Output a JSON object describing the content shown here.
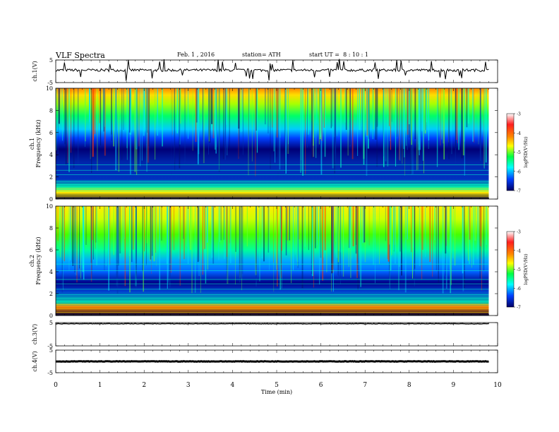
{
  "header": {
    "title": "VLF Spectra",
    "date": "Feb. 1 , 2016",
    "station": "station= ATH",
    "start": "start UT =  8 : 10 : 1"
  },
  "colors": {
    "spec_low": "#000066",
    "spec_mid": "#00cc88",
    "spec_high": "#ff2200",
    "trace": "#000000"
  },
  "colorbar": {
    "label": "logPSD(V²/Hz)",
    "ticks": [
      "-3",
      "-4",
      "-5",
      "-6",
      "-7"
    ],
    "stops": [
      "#ffffff",
      "#ff1f1f",
      "#ff8800",
      "#ffff00",
      "#00ff44",
      "#00ffff",
      "#0040ff",
      "#000066"
    ]
  },
  "chart_data": [
    {
      "type": "line",
      "name_label": "ch.1(V)",
      "xlabel": "Time (min)",
      "ylabel": "ch.1(V)",
      "xlim": [
        0,
        10
      ],
      "ylim": [
        -5,
        5
      ],
      "yticks": [
        "5",
        "-5"
      ],
      "approx_level": 0.5,
      "x_end": 9.8
    },
    {
      "type": "heatmap",
      "ylabel_lines": [
        "ch.1",
        "Frequency (kHz)"
      ],
      "xlabel": "Time (min)",
      "xlim": [
        0,
        10
      ],
      "ylim": [
        0,
        10
      ],
      "yticks": [
        "0",
        "2",
        "4",
        "6",
        "8",
        "10"
      ],
      "zlabel": "logPSD(V²/Hz)",
      "zlim": [
        -7,
        -3
      ],
      "x_end": 9.8
    },
    {
      "type": "heatmap",
      "ylabel_lines": [
        "ch.2",
        "Frequency (kHz)"
      ],
      "xlabel": "Time (min)",
      "xlim": [
        0,
        10
      ],
      "ylim": [
        0,
        10
      ],
      "yticks": [
        "0",
        "2",
        "4",
        "6",
        "8",
        "10"
      ],
      "zlabel": "logPSD(V²/Hz)",
      "zlim": [
        -7,
        -3
      ],
      "x_end": 9.8
    },
    {
      "type": "line",
      "name_label": "ch.3(V)",
      "xlabel": "Time (min)",
      "ylabel": "ch.3(V)",
      "xlim": [
        0,
        10
      ],
      "ylim": [
        -5,
        5
      ],
      "yticks": [
        "5",
        "-5"
      ],
      "approx_level": 4.5,
      "x_end": 9.8
    },
    {
      "type": "line",
      "name_label": "ch.4(V)",
      "xlabel": "Time (min)",
      "ylabel": "ch.4(V)",
      "xlim": [
        0,
        10
      ],
      "ylim": [
        -5,
        5
      ],
      "yticks": [
        "5",
        "-5"
      ],
      "approx_level": 0,
      "x_end": 9.8
    }
  ],
  "xaxis": {
    "label": "Time (min)",
    "ticks": [
      "0",
      "1",
      "2",
      "3",
      "4",
      "5",
      "6",
      "7",
      "8",
      "9",
      "10"
    ]
  }
}
